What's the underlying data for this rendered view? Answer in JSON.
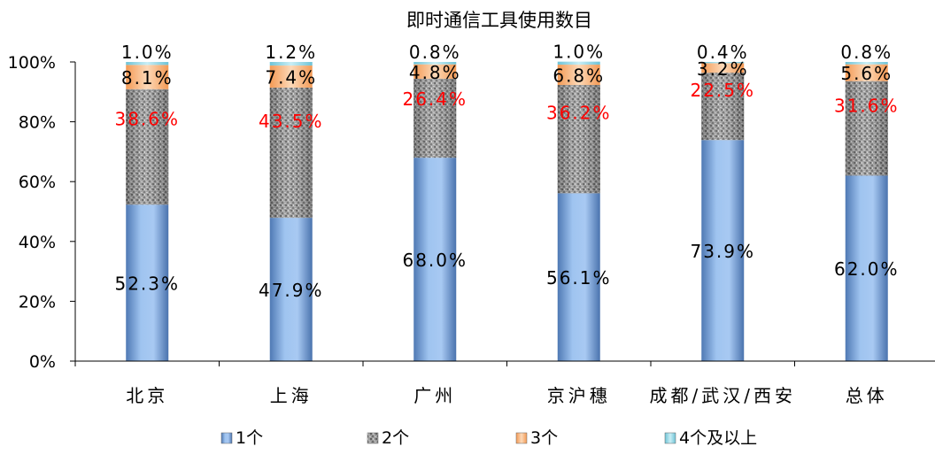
{
  "chart_data": {
    "type": "bar",
    "stacked": true,
    "percent_stacked": true,
    "title": "即时通信工具使用数目",
    "categories": [
      "北京",
      "上海",
      "广州",
      "京沪穗",
      "成都/武汉/西安",
      "总体"
    ],
    "series": [
      {
        "name": "1个",
        "values": [
          52.3,
          47.9,
          68.0,
          56.1,
          73.9,
          62.0
        ],
        "labels": [
          "52.3%",
          "47.9%",
          "68.0%",
          "56.1%",
          "73.9%",
          "62.0%"
        ],
        "color": "#6f9bd8",
        "label_color": "#000000"
      },
      {
        "name": "2个",
        "values": [
          38.6,
          43.5,
          26.4,
          36.2,
          22.5,
          31.6
        ],
        "labels": [
          "38.6%",
          "43.5%",
          "26.4%",
          "36.2%",
          "22.5%",
          "31.6%"
        ],
        "color": "#8c8c8c",
        "label_color": "#ff0000"
      },
      {
        "name": "3个",
        "values": [
          8.1,
          7.4,
          4.8,
          6.8,
          3.2,
          5.6
        ],
        "labels": [
          "8.1%",
          "7.4%",
          "4.8%",
          "6.8%",
          "3.2%",
          "5.6%"
        ],
        "color": "#f3a266",
        "label_color": "#000000"
      },
      {
        "name": "4个及以上",
        "values": [
          1.0,
          1.2,
          0.8,
          1.0,
          0.4,
          0.8
        ],
        "labels": [
          "1.0%",
          "1.2%",
          "0.8%",
          "1.0%",
          "0.4%",
          "0.8%"
        ],
        "color": "#8fd3e0",
        "label_color": "#000000"
      }
    ],
    "ylim": [
      0,
      100
    ],
    "ytick_labels": [
      "0%",
      "20%",
      "40%",
      "60%",
      "80%",
      "100%"
    ],
    "grid": false,
    "legend_position": "bottom"
  }
}
